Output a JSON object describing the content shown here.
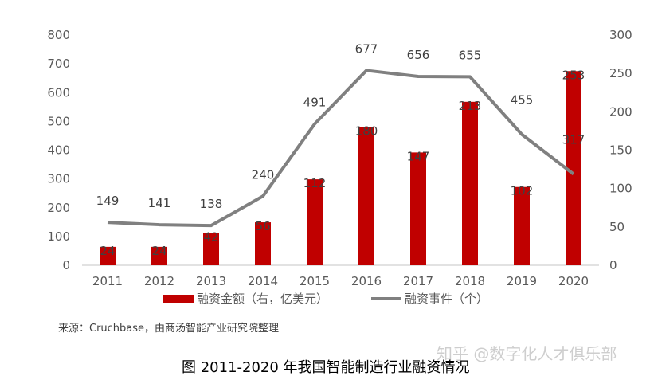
{
  "chart_data": {
    "type": "bar+line",
    "categories": [
      "2011",
      "2012",
      "2013",
      "2014",
      "2015",
      "2016",
      "2017",
      "2018",
      "2019",
      "2020"
    ],
    "series": [
      {
        "name": "融资金额（右，亿美元）",
        "type": "bar",
        "axis": "right",
        "color": "#C00000",
        "values": [
          24,
          24,
          42,
          56,
          112,
          180,
          147,
          213,
          102,
          253
        ]
      },
      {
        "name": "融资事件（个）",
        "type": "line",
        "axis": "left",
        "color": "#808080",
        "values": [
          149,
          141,
          138,
          240,
          491,
          677,
          656,
          655,
          455,
          317
        ]
      }
    ],
    "left_axis": {
      "ylim": [
        0,
        800
      ],
      "ticks": [
        "0",
        "100",
        "200",
        "300",
        "400",
        "500",
        "600",
        "700",
        "800"
      ]
    },
    "right_axis": {
      "ylim": [
        0,
        300
      ],
      "ticks": [
        "0",
        "50",
        "100",
        "150",
        "200",
        "250",
        "300"
      ]
    },
    "grid": false,
    "legend": "bottom"
  },
  "source": "来源：Cruchbase，由商汤智能产业研究院整理",
  "caption": "图  2011-2020 年我国智能制造行业融资情况",
  "watermark": "知乎 @数字化人才俱乐部"
}
